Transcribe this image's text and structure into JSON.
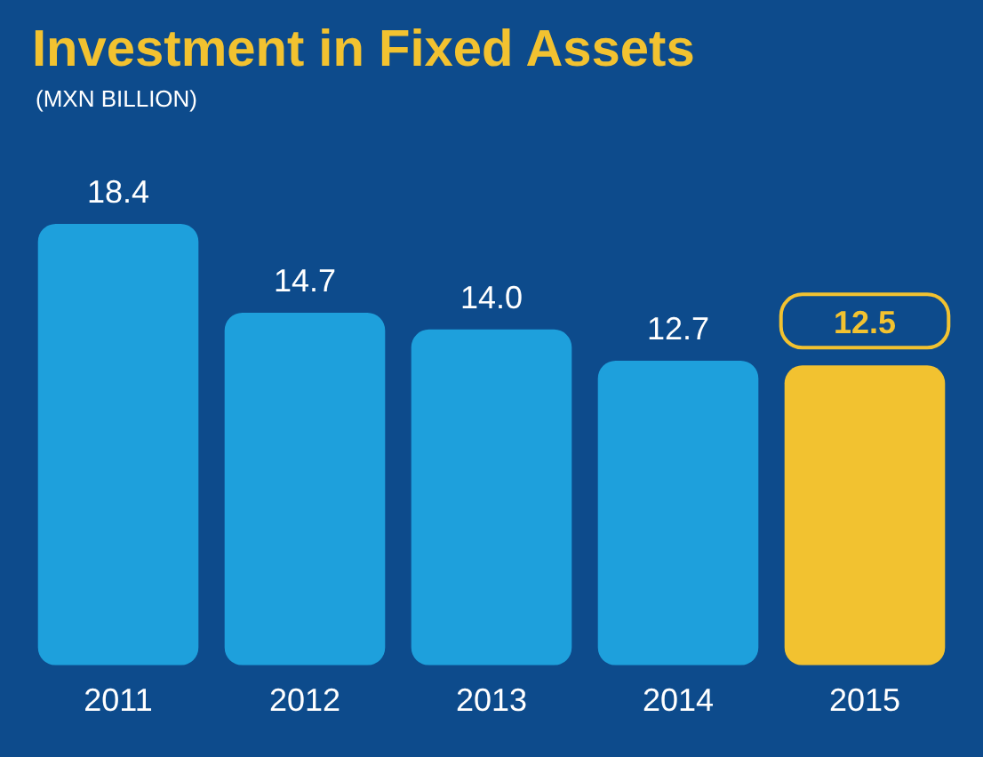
{
  "chart_data": {
    "type": "bar",
    "title": "Investment in Fixed Assets",
    "subtitle": "(MXN BILLION)",
    "categories": [
      "2011",
      "2012",
      "2013",
      "2014",
      "2015"
    ],
    "values": [
      18.4,
      14.7,
      14.0,
      12.7,
      12.5
    ],
    "colors": [
      "#1ea0dc",
      "#1ea0dc",
      "#1ea0dc",
      "#1ea0dc",
      "#f2c230"
    ],
    "value_labels": [
      "18.4",
      "14.7",
      "14.0",
      "12.7",
      "12.5"
    ],
    "grid": false,
    "legend": false
  }
}
